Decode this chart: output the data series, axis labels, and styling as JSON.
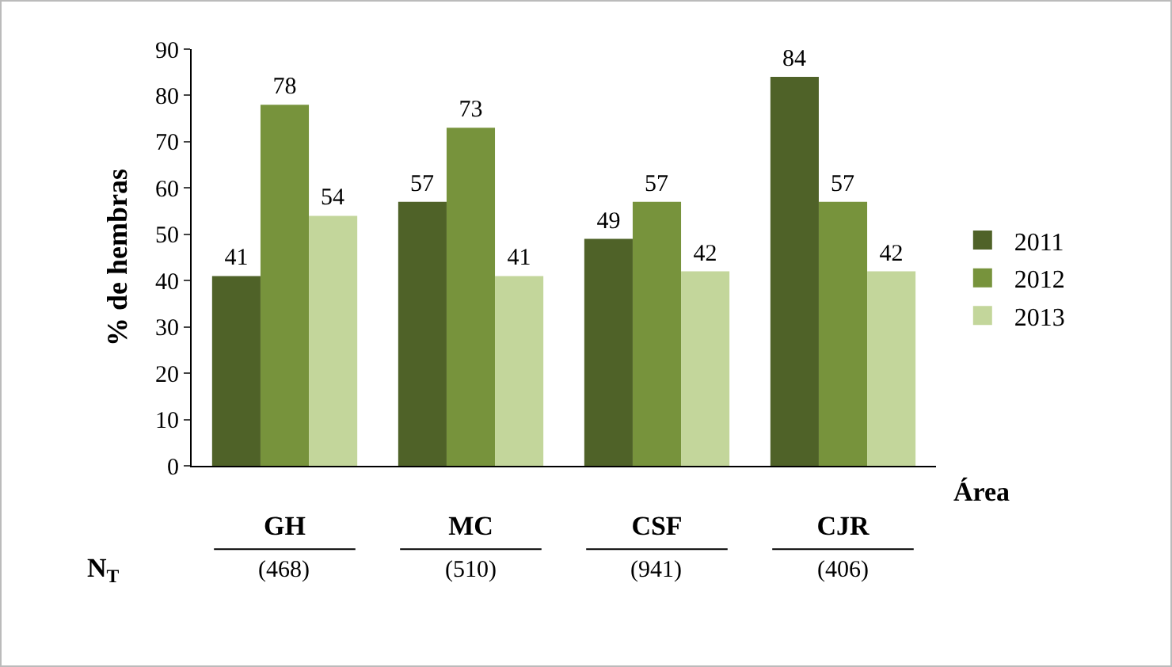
{
  "chart_data": {
    "type": "bar",
    "ylabel": "% de hembras",
    "xlabel": "Área",
    "categories": [
      "GH",
      "MC",
      "CSF",
      "CJR"
    ],
    "series": [
      {
        "name": "2011",
        "color": "#4f6228",
        "values": [
          41,
          57,
          49,
          84
        ]
      },
      {
        "name": "2012",
        "color": "#77933c",
        "values": [
          78,
          73,
          57,
          57
        ]
      },
      {
        "name": "2013",
        "color": "#c3d69b",
        "values": [
          54,
          41,
          42,
          42
        ]
      }
    ],
    "ylim": [
      0,
      90
    ],
    "yticks": [
      0,
      10,
      20,
      30,
      40,
      50,
      60,
      70,
      80,
      90
    ],
    "grid": false,
    "legend": "right",
    "data_labels": true,
    "annotations": [
      "N$_{T}$",
      "(468)",
      "(510)",
      "(941)",
      "(406)"
    ]
  }
}
